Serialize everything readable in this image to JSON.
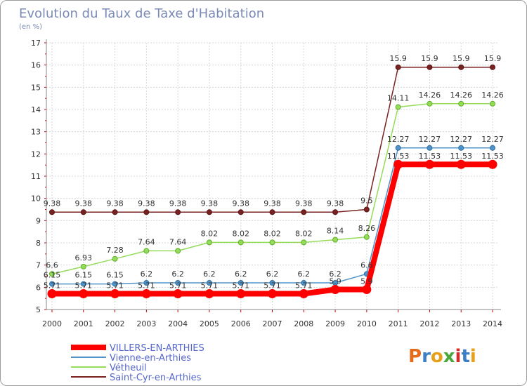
{
  "chart_data": {
    "type": "line",
    "title": "Evolution du Taux de Taxe d'Habitation",
    "subtitle": "(en %)",
    "x": [
      "2000",
      "2001",
      "2002",
      "2003",
      "2004",
      "2005",
      "2006",
      "2007",
      "2008",
      "2009",
      "2010",
      "2011",
      "2012",
      "2013",
      "2014"
    ],
    "ylim": [
      5,
      17
    ],
    "yticks": [
      5,
      6,
      7,
      8,
      9,
      10,
      11,
      12,
      13,
      14,
      15,
      16,
      17
    ],
    "grid": true,
    "legend_position": "bottom-left",
    "series": [
      {
        "name": "VILLERS-EN-ARTHIES",
        "color": "#ff0000",
        "values": [
          5.71,
          5.71,
          5.71,
          5.71,
          5.71,
          5.71,
          5.71,
          5.71,
          5.71,
          5.9,
          5.9,
          11.53,
          11.53,
          11.53,
          11.53
        ],
        "labels": [
          "5.71",
          "5.71",
          "5.71",
          "5.71",
          "5.71",
          "5.71",
          "5.71",
          "5.71",
          "5.71",
          "5.9",
          "5.9",
          "11.53",
          "11.53",
          "11.53",
          "11.53"
        ]
      },
      {
        "name": "Vienne-en-Arthies",
        "color": "#4f93c8",
        "values": [
          6.15,
          6.15,
          6.15,
          6.2,
          6.2,
          6.2,
          6.2,
          6.2,
          6.2,
          6.2,
          6.6,
          12.27,
          12.27,
          12.27,
          12.27
        ],
        "labels": [
          "6.15",
          "6.15",
          "6.15",
          "6.2",
          "6.2",
          "6.2",
          "6.2",
          "6.2",
          "6.2",
          "6.2",
          "6.6",
          "12.27",
          "12.27",
          "12.27",
          "12.27"
        ]
      },
      {
        "name": "Vétheuil",
        "color": "#94dc5a",
        "values": [
          6.6,
          6.93,
          7.28,
          7.64,
          7.64,
          8.02,
          8.02,
          8.02,
          8.02,
          8.14,
          8.26,
          14.11,
          14.26,
          14.26,
          14.26
        ],
        "labels": [
          "6.6",
          "6.93",
          "7.28",
          "7.64",
          "7.64",
          "8.02",
          "8.02",
          "8.02",
          "8.02",
          "8.14",
          "8.26",
          "14.11",
          "14.26",
          "14.26",
          "14.26"
        ]
      },
      {
        "name": "Saint-Cyr-en-Arthies",
        "color": "#7a2222",
        "values": [
          9.38,
          9.38,
          9.38,
          9.38,
          9.38,
          9.38,
          9.38,
          9.38,
          9.38,
          9.38,
          9.5,
          15.9,
          15.9,
          15.9,
          15.9
        ],
        "labels": [
          "9.38",
          "9.38",
          "9.38",
          "9.38",
          "9.38",
          "9.38",
          "9.38",
          "9.38",
          "9.38",
          "9.38",
          "9.5",
          "15.9",
          "15.9",
          "15.9",
          "15.9"
        ]
      }
    ]
  },
  "branding": {
    "logo_text": "Proxiti"
  }
}
